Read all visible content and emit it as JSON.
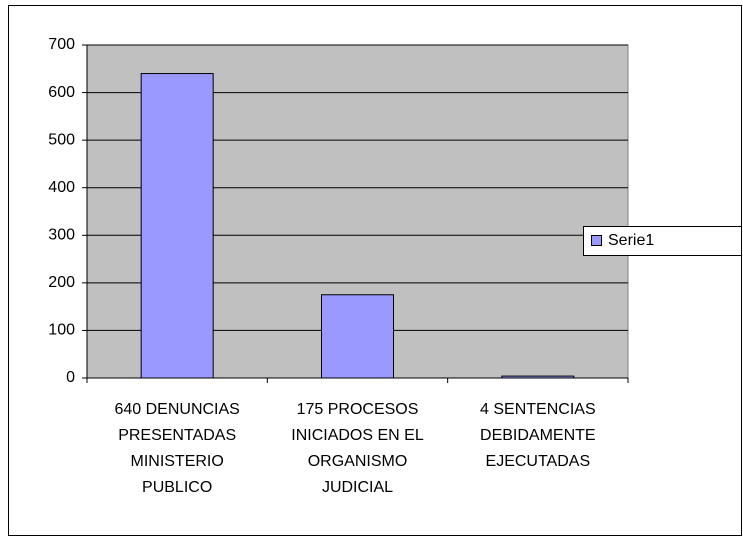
{
  "chart_data": {
    "type": "bar",
    "categories": [
      [
        "640 DENUNCIAS",
        "PRESENTADAS",
        "MINISTERIO",
        "PUBLICO"
      ],
      [
        "175 PROCESOS",
        "INICIADOS EN EL",
        "ORGANISMO",
        "JUDICIAL"
      ],
      [
        "4 SENTENCIAS",
        "DEBIDAMENTE",
        "EJECUTADAS"
      ]
    ],
    "series": [
      {
        "name": "Serie1",
        "color": "#9999ff",
        "values": [
          640,
          175,
          4
        ]
      }
    ],
    "ylim": [
      0,
      700
    ],
    "yticks": [
      0,
      100,
      200,
      300,
      400,
      500,
      600,
      700
    ],
    "grid": true,
    "legend": "right"
  }
}
